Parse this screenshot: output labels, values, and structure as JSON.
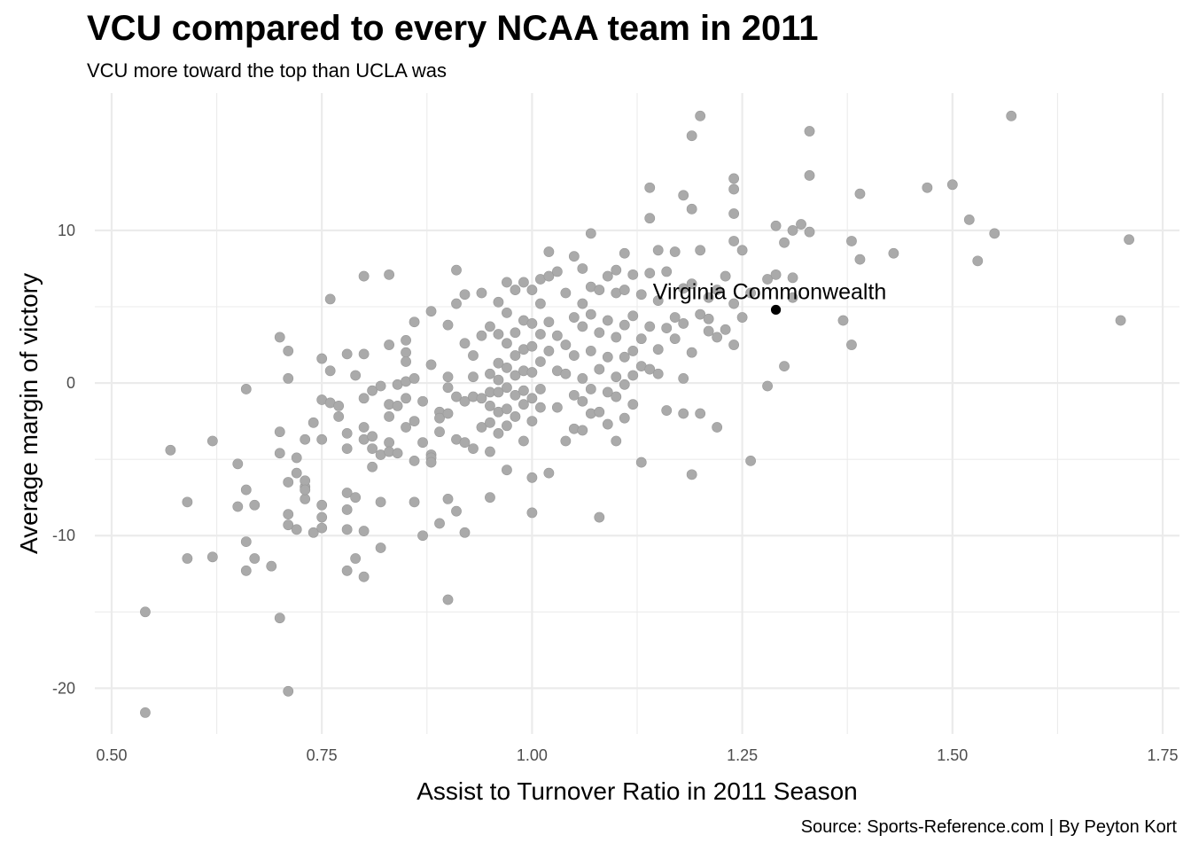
{
  "chart_data": {
    "type": "scatter",
    "title": "VCU compared to every NCAA team in 2011",
    "subtitle": "VCU more toward the top than UCLA was",
    "caption": "Source: Sports-Reference.com | By Peyton Kort",
    "xlabel": "Assist to Turnover Ratio in 2011 Season",
    "ylabel": "Average margin of victory",
    "xlim": [
      0.48,
      1.77
    ],
    "ylim": [
      -23,
      19
    ],
    "x_ticks": [
      0.5,
      0.75,
      1.0,
      1.25,
      1.5,
      1.75
    ],
    "x_tick_labels": [
      "0.50",
      "0.75",
      "1.00",
      "1.25",
      "1.50",
      "1.75"
    ],
    "y_ticks": [
      -20,
      -10,
      0,
      10
    ],
    "y_tick_labels": [
      "-20",
      "-10",
      "0",
      "10"
    ],
    "grid": true,
    "colors": {
      "points": "#aaaaaa",
      "points_stroke": "#999999",
      "highlight": "#000000",
      "grid": "#ebebeb"
    },
    "series": [
      {
        "points": [
          [
            0.54,
            -15.0
          ],
          [
            0.54,
            -21.6
          ],
          [
            0.57,
            -4.4
          ],
          [
            0.59,
            -7.8
          ],
          [
            0.59,
            -11.5
          ],
          [
            0.62,
            -3.8
          ],
          [
            0.62,
            -11.4
          ],
          [
            0.65,
            -5.3
          ],
          [
            0.65,
            -8.1
          ],
          [
            0.66,
            -12.3
          ],
          [
            0.66,
            -0.4
          ],
          [
            0.66,
            -7.0
          ],
          [
            0.66,
            -10.4
          ],
          [
            0.67,
            -8.0
          ],
          [
            0.67,
            -11.5
          ],
          [
            0.69,
            -12.0
          ],
          [
            0.7,
            3.0
          ],
          [
            0.7,
            -3.2
          ],
          [
            0.7,
            -4.6
          ],
          [
            0.7,
            -15.4
          ],
          [
            0.71,
            0.3
          ],
          [
            0.71,
            2.1
          ],
          [
            0.71,
            -6.5
          ],
          [
            0.71,
            -8.6
          ],
          [
            0.71,
            -9.3
          ],
          [
            0.71,
            -20.2
          ],
          [
            0.72,
            -5.9
          ],
          [
            0.72,
            -4.9
          ],
          [
            0.72,
            -9.6
          ],
          [
            0.73,
            -3.7
          ],
          [
            0.73,
            -6.8
          ],
          [
            0.73,
            -7.6
          ],
          [
            0.73,
            -6.4
          ],
          [
            0.73,
            -7.0
          ],
          [
            0.74,
            -2.6
          ],
          [
            0.74,
            -9.8
          ],
          [
            0.75,
            -8.0
          ],
          [
            0.75,
            1.6
          ],
          [
            0.75,
            -1.1
          ],
          [
            0.75,
            -3.7
          ],
          [
            0.75,
            -9.5
          ],
          [
            0.75,
            -8.8
          ],
          [
            0.76,
            5.5
          ],
          [
            0.76,
            0.8
          ],
          [
            0.76,
            -1.3
          ],
          [
            0.77,
            -1.5
          ],
          [
            0.77,
            -2.2
          ],
          [
            0.78,
            1.9
          ],
          [
            0.78,
            -3.3
          ],
          [
            0.78,
            -4.3
          ],
          [
            0.78,
            -7.2
          ],
          [
            0.78,
            -8.3
          ],
          [
            0.78,
            -9.6
          ],
          [
            0.78,
            -12.3
          ],
          [
            0.79,
            0.5
          ],
          [
            0.79,
            -11.5
          ],
          [
            0.79,
            -7.5
          ],
          [
            0.8,
            7.0
          ],
          [
            0.8,
            1.9
          ],
          [
            0.8,
            -1.0
          ],
          [
            0.8,
            -2.9
          ],
          [
            0.8,
            -3.7
          ],
          [
            0.8,
            -9.7
          ],
          [
            0.8,
            -12.7
          ],
          [
            0.81,
            -0.5
          ],
          [
            0.81,
            -4.3
          ],
          [
            0.81,
            -3.5
          ],
          [
            0.81,
            -5.5
          ],
          [
            0.82,
            -0.2
          ],
          [
            0.82,
            -4.7
          ],
          [
            0.82,
            -7.8
          ],
          [
            0.82,
            -10.8
          ],
          [
            0.83,
            7.1
          ],
          [
            0.83,
            2.5
          ],
          [
            0.83,
            -1.4
          ],
          [
            0.83,
            -2.2
          ],
          [
            0.83,
            -3.9
          ],
          [
            0.83,
            -4.5
          ],
          [
            0.84,
            -0.1
          ],
          [
            0.84,
            -1.5
          ],
          [
            0.84,
            -4.6
          ],
          [
            0.85,
            2.8
          ],
          [
            0.85,
            2.0
          ],
          [
            0.85,
            1.4
          ],
          [
            0.85,
            0.1
          ],
          [
            0.85,
            -1.0
          ],
          [
            0.85,
            -2.9
          ],
          [
            0.86,
            4.0
          ],
          [
            0.86,
            -5.1
          ],
          [
            0.86,
            -7.8
          ],
          [
            0.86,
            0.3
          ],
          [
            0.86,
            -2.5
          ],
          [
            0.87,
            -1.2
          ],
          [
            0.87,
            -3.9
          ],
          [
            0.87,
            -10.0
          ],
          [
            0.88,
            -4.7
          ],
          [
            0.88,
            -4.9
          ],
          [
            0.88,
            -5.2
          ],
          [
            0.88,
            4.7
          ],
          [
            0.88,
            1.2
          ],
          [
            0.89,
            -1.9
          ],
          [
            0.89,
            -2.3
          ],
          [
            0.89,
            -3.2
          ],
          [
            0.89,
            -9.2
          ],
          [
            0.9,
            3.8
          ],
          [
            0.9,
            0.4
          ],
          [
            0.9,
            -0.3
          ],
          [
            0.9,
            -2.0
          ],
          [
            0.9,
            -7.6
          ],
          [
            0.9,
            -14.2
          ],
          [
            0.91,
            7.4
          ],
          [
            0.91,
            5.2
          ],
          [
            0.91,
            -0.9
          ],
          [
            0.91,
            -3.7
          ],
          [
            0.91,
            -8.4
          ],
          [
            0.92,
            5.8
          ],
          [
            0.92,
            2.6
          ],
          [
            0.92,
            -1.2
          ],
          [
            0.92,
            -3.9
          ],
          [
            0.92,
            -9.8
          ],
          [
            0.93,
            1.8
          ],
          [
            0.93,
            0.4
          ],
          [
            0.93,
            -0.9
          ],
          [
            0.93,
            -4.3
          ],
          [
            0.94,
            5.9
          ],
          [
            0.94,
            3.1
          ],
          [
            0.94,
            -1.0
          ],
          [
            0.94,
            -2.9
          ],
          [
            0.95,
            3.7
          ],
          [
            0.95,
            0.6
          ],
          [
            0.95,
            -0.6
          ],
          [
            0.95,
            -1.5
          ],
          [
            0.95,
            -2.6
          ],
          [
            0.95,
            -4.5
          ],
          [
            0.95,
            -7.5
          ],
          [
            0.96,
            5.3
          ],
          [
            0.96,
            3.2
          ],
          [
            0.96,
            1.3
          ],
          [
            0.96,
            0.2
          ],
          [
            0.96,
            -0.6
          ],
          [
            0.96,
            -1.9
          ],
          [
            0.96,
            -3.3
          ],
          [
            0.97,
            6.6
          ],
          [
            0.97,
            4.6
          ],
          [
            0.97,
            2.6
          ],
          [
            0.97,
            1.0
          ],
          [
            0.97,
            -0.3
          ],
          [
            0.97,
            -1.7
          ],
          [
            0.97,
            -2.8
          ],
          [
            0.97,
            -5.7
          ],
          [
            0.98,
            6.1
          ],
          [
            0.98,
            3.3
          ],
          [
            0.98,
            1.8
          ],
          [
            0.98,
            0.5
          ],
          [
            0.98,
            -0.8
          ],
          [
            0.98,
            -2.2
          ],
          [
            0.99,
            6.6
          ],
          [
            0.99,
            4.1
          ],
          [
            0.99,
            2.2
          ],
          [
            0.99,
            0.8
          ],
          [
            0.99,
            -0.5
          ],
          [
            0.99,
            -1.4
          ],
          [
            0.99,
            -3.8
          ],
          [
            1.0,
            6.1
          ],
          [
            1.0,
            3.9
          ],
          [
            1.0,
            2.4
          ],
          [
            1.0,
            0.7
          ],
          [
            1.0,
            -1.0
          ],
          [
            1.0,
            -2.5
          ],
          [
            1.0,
            -6.2
          ],
          [
            1.0,
            -8.5
          ],
          [
            1.01,
            6.8
          ],
          [
            1.01,
            5.2
          ],
          [
            1.01,
            3.2
          ],
          [
            1.01,
            1.4
          ],
          [
            1.01,
            -0.4
          ],
          [
            1.01,
            -1.6
          ],
          [
            1.02,
            8.6
          ],
          [
            1.02,
            7.0
          ],
          [
            1.02,
            4.0
          ],
          [
            1.02,
            2.1
          ],
          [
            1.02,
            -5.9
          ],
          [
            1.03,
            7.3
          ],
          [
            1.03,
            3.1
          ],
          [
            1.03,
            0.8
          ],
          [
            1.03,
            -1.6
          ],
          [
            1.04,
            5.9
          ],
          [
            1.04,
            2.5
          ],
          [
            1.04,
            0.6
          ],
          [
            1.04,
            -3.8
          ],
          [
            1.05,
            8.3
          ],
          [
            1.05,
            4.3
          ],
          [
            1.05,
            1.8
          ],
          [
            1.05,
            -0.8
          ],
          [
            1.05,
            -3.0
          ],
          [
            1.06,
            7.5
          ],
          [
            1.06,
            5.2
          ],
          [
            1.06,
            3.7
          ],
          [
            1.06,
            0.3
          ],
          [
            1.06,
            -1.2
          ],
          [
            1.06,
            -3.1
          ],
          [
            1.07,
            9.8
          ],
          [
            1.07,
            6.3
          ],
          [
            1.07,
            4.5
          ],
          [
            1.07,
            2.1
          ],
          [
            1.07,
            -0.4
          ],
          [
            1.07,
            -2.0
          ],
          [
            1.08,
            6.1
          ],
          [
            1.08,
            3.3
          ],
          [
            1.08,
            0.9
          ],
          [
            1.08,
            -1.9
          ],
          [
            1.08,
            -8.8
          ],
          [
            1.09,
            7.0
          ],
          [
            1.09,
            4.1
          ],
          [
            1.09,
            1.7
          ],
          [
            1.09,
            -0.6
          ],
          [
            1.09,
            -2.7
          ],
          [
            1.1,
            7.4
          ],
          [
            1.1,
            5.9
          ],
          [
            1.1,
            3.0
          ],
          [
            1.1,
            0.4
          ],
          [
            1.1,
            -0.9
          ],
          [
            1.1,
            -3.8
          ],
          [
            1.11,
            8.5
          ],
          [
            1.11,
            6.1
          ],
          [
            1.11,
            3.8
          ],
          [
            1.11,
            1.7
          ],
          [
            1.11,
            -0.1
          ],
          [
            1.11,
            -2.3
          ],
          [
            1.12,
            7.1
          ],
          [
            1.12,
            4.4
          ],
          [
            1.12,
            2.1
          ],
          [
            1.12,
            0.5
          ],
          [
            1.12,
            -1.4
          ],
          [
            1.13,
            5.8
          ],
          [
            1.13,
            2.9
          ],
          [
            1.13,
            1.1
          ],
          [
            1.13,
            -5.2
          ],
          [
            1.14,
            12.8
          ],
          [
            1.14,
            10.8
          ],
          [
            1.14,
            7.2
          ],
          [
            1.14,
            3.7
          ],
          [
            1.14,
            0.9
          ],
          [
            1.15,
            8.7
          ],
          [
            1.15,
            5.4
          ],
          [
            1.15,
            2.2
          ],
          [
            1.15,
            0.6
          ],
          [
            1.16,
            7.3
          ],
          [
            1.16,
            3.6
          ],
          [
            1.16,
            -1.8
          ],
          [
            1.17,
            8.6
          ],
          [
            1.17,
            4.3
          ],
          [
            1.17,
            2.9
          ],
          [
            1.18,
            12.3
          ],
          [
            1.18,
            6.2
          ],
          [
            1.18,
            3.9
          ],
          [
            1.18,
            0.3
          ],
          [
            1.18,
            -2.0
          ],
          [
            1.19,
            16.2
          ],
          [
            1.19,
            11.4
          ],
          [
            1.19,
            6.5
          ],
          [
            1.19,
            2.0
          ],
          [
            1.19,
            -6.0
          ],
          [
            1.2,
            17.5
          ],
          [
            1.2,
            8.7
          ],
          [
            1.2,
            4.5
          ],
          [
            1.2,
            -2.0
          ],
          [
            1.21,
            5.6
          ],
          [
            1.21,
            3.4
          ],
          [
            1.21,
            4.2
          ],
          [
            1.22,
            6.1
          ],
          [
            1.22,
            3.0
          ],
          [
            1.22,
            -2.9
          ],
          [
            1.23,
            7.0
          ],
          [
            1.23,
            3.5
          ],
          [
            1.24,
            12.7
          ],
          [
            1.24,
            11.1
          ],
          [
            1.24,
            9.3
          ],
          [
            1.24,
            5.2
          ],
          [
            1.24,
            13.4
          ],
          [
            1.24,
            2.5
          ],
          [
            1.25,
            8.7
          ],
          [
            1.25,
            4.3
          ],
          [
            1.26,
            5.9
          ],
          [
            1.26,
            -5.1
          ],
          [
            1.28,
            6.8
          ],
          [
            1.28,
            -0.2
          ],
          [
            1.29,
            10.3
          ],
          [
            1.29,
            7.1
          ],
          [
            1.3,
            9.2
          ],
          [
            1.3,
            1.1
          ],
          [
            1.31,
            10.0
          ],
          [
            1.31,
            6.9
          ],
          [
            1.31,
            5.6
          ],
          [
            1.32,
            10.4
          ],
          [
            1.33,
            16.5
          ],
          [
            1.33,
            13.6
          ],
          [
            1.33,
            9.9
          ],
          [
            1.37,
            4.1
          ],
          [
            1.38,
            9.3
          ],
          [
            1.38,
            2.5
          ],
          [
            1.39,
            8.1
          ],
          [
            1.39,
            12.4
          ],
          [
            1.43,
            8.5
          ],
          [
            1.47,
            12.8
          ],
          [
            1.5,
            13.0
          ],
          [
            1.52,
            10.7
          ],
          [
            1.53,
            8.0
          ],
          [
            1.55,
            9.8
          ],
          [
            1.57,
            17.5
          ],
          [
            1.7,
            4.1
          ],
          [
            1.71,
            9.4
          ]
        ]
      }
    ],
    "highlight": {
      "label": "Virginia Commonwealth",
      "x": 1.29,
      "y": 4.8
    }
  }
}
